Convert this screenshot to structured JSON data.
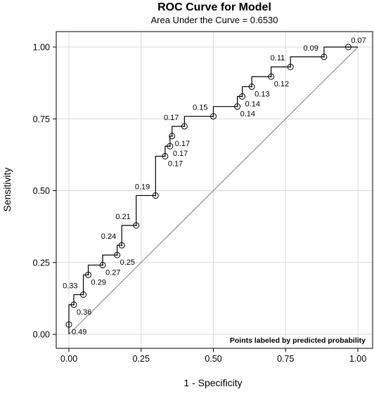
{
  "chart_data": {
    "type": "line",
    "title": "ROC Curve for Model",
    "subtitle": "Area Under the Curve = 0.6530",
    "xlabel": "1 - Specificity",
    "ylabel": "Sensitivity",
    "xlim": [
      0,
      1
    ],
    "ylim": [
      0,
      1
    ],
    "x_ticks": [
      0,
      0.25,
      0.5,
      0.75,
      1
    ],
    "y_ticks": [
      0,
      0.25,
      0.5,
      0.75,
      1
    ],
    "x_tick_labels": [
      "0.00",
      "0.25",
      "0.50",
      "0.75",
      "1.00"
    ],
    "y_tick_labels": [
      "0.00",
      "0.25",
      "0.50",
      "0.75",
      "1.00"
    ],
    "grid": true,
    "annotation": "Points labeled by predicted probability",
    "diagonal_reference": [
      [
        0,
        0
      ],
      [
        1,
        1
      ]
    ],
    "points": [
      {
        "x": 0.0,
        "y": 0.034,
        "label": "0.49"
      },
      {
        "x": 0.017,
        "y": 0.103,
        "label": "0.36"
      },
      {
        "x": 0.05,
        "y": 0.138,
        "label": "0.33"
      },
      {
        "x": 0.067,
        "y": 0.207,
        "label": "0.29"
      },
      {
        "x": 0.117,
        "y": 0.241,
        "label": "0.27"
      },
      {
        "x": 0.167,
        "y": 0.276,
        "label": "0.25"
      },
      {
        "x": 0.183,
        "y": 0.31,
        "label": "0.24"
      },
      {
        "x": 0.233,
        "y": 0.379,
        "label": "0.21"
      },
      {
        "x": 0.3,
        "y": 0.483,
        "label": "0.19"
      },
      {
        "x": 0.333,
        "y": 0.62,
        "label": "0.17"
      },
      {
        "x": 0.35,
        "y": 0.655,
        "label": "0.17"
      },
      {
        "x": 0.357,
        "y": 0.69,
        "label": "0.17"
      },
      {
        "x": 0.4,
        "y": 0.724,
        "label": "0.17"
      },
      {
        "x": 0.5,
        "y": 0.759,
        "label": "0.15"
      },
      {
        "x": 0.583,
        "y": 0.793,
        "label": "0.14"
      },
      {
        "x": 0.6,
        "y": 0.828,
        "label": "0.14"
      },
      {
        "x": 0.633,
        "y": 0.862,
        "label": "0.13"
      },
      {
        "x": 0.7,
        "y": 0.897,
        "label": "0.12"
      },
      {
        "x": 0.767,
        "y": 0.931,
        "label": "0.11"
      },
      {
        "x": 0.883,
        "y": 0.966,
        "label": "0.09"
      },
      {
        "x": 0.967,
        "y": 1.0,
        "label": "0.07"
      }
    ],
    "colors": {
      "curve": "#000000",
      "grid": "#d9d9d9",
      "diagonal": "#808080"
    }
  }
}
